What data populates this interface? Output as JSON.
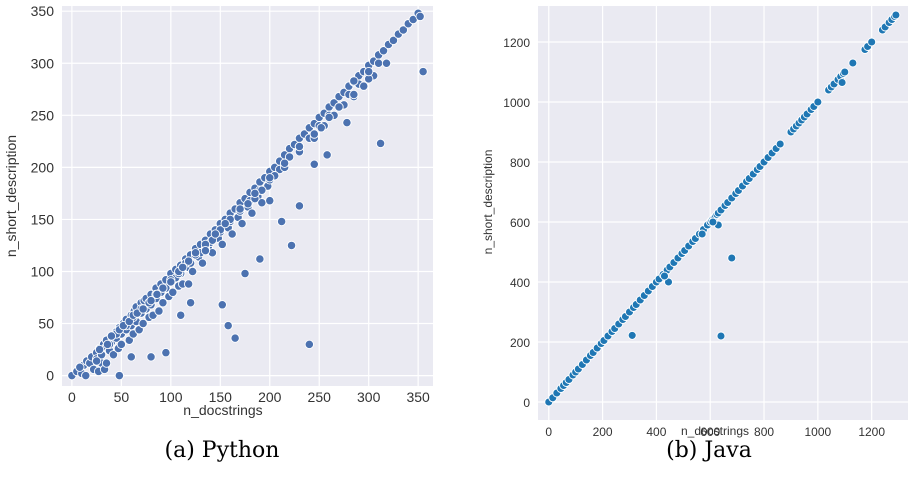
{
  "colors": {
    "panel_bg": "#eaeaf2",
    "grid": "#ffffff",
    "python_marker": "#4c72b0",
    "java_marker": "#1f77b4",
    "marker_edge": "#ffffff"
  },
  "chart_data": [
    {
      "type": "scatter",
      "caption": "(a) Python",
      "xlabel": "n_docstrings",
      "ylabel": "n_short_description",
      "xlim": [
        -10,
        365
      ],
      "ylim": [
        -10,
        355
      ],
      "xticks": [
        0,
        50,
        100,
        150,
        200,
        250,
        300,
        350
      ],
      "yticks": [
        0,
        50,
        100,
        150,
        200,
        250,
        300,
        350
      ],
      "grid": true,
      "series": [
        {
          "x": [
            0,
            5,
            8,
            10,
            12,
            14,
            15,
            18,
            20,
            22,
            25,
            25,
            27,
            28,
            30,
            30,
            32,
            33,
            35,
            35,
            38,
            40,
            40,
            42,
            45,
            45,
            47,
            48,
            50,
            50,
            52,
            55,
            55,
            58,
            60,
            60,
            62,
            63,
            65,
            65,
            68,
            70,
            70,
            72,
            73,
            75,
            75,
            78,
            80,
            80,
            82,
            85,
            85,
            88,
            90,
            90,
            92,
            95,
            95,
            98,
            100,
            100,
            102,
            105,
            105,
            108,
            110,
            110,
            112,
            115,
            118,
            120,
            120,
            122,
            125,
            128,
            130,
            130,
            132,
            135,
            138,
            140,
            140,
            142,
            145,
            148,
            150,
            150,
            152,
            155,
            158,
            160,
            160,
            162,
            165,
            168,
            170,
            170,
            172,
            175,
            178,
            180,
            180,
            182,
            185,
            188,
            190,
            190,
            192,
            195,
            198,
            200,
            200,
            205,
            210,
            210,
            215,
            220,
            220,
            225,
            230,
            230,
            235,
            240,
            240,
            245,
            250,
            250,
            255,
            260,
            260,
            265,
            270,
            270,
            275,
            280,
            280,
            285,
            290,
            290,
            295,
            300,
            300,
            305,
            310,
            310,
            315,
            320,
            325,
            330,
            335,
            340,
            345,
            350,
            352,
            38,
            30,
            45,
            28,
            55,
            36,
            62,
            40,
            70,
            48,
            78,
            52,
            85,
            58,
            92,
            62,
            100,
            66,
            108,
            72,
            115,
            80,
            125,
            86,
            135,
            92,
            142,
            100,
            150,
            108,
            160,
            112,
            170,
            118,
            178,
            125,
            185,
            135,
            192,
            145,
            205,
            155,
            215,
            170,
            230,
            185,
            245,
            200,
            255,
            215,
            265,
            230,
            275,
            245,
            285,
            260,
            295,
            270,
            305,
            285,
            318,
            300,
            48,
            60,
            80,
            95,
            110,
            120,
            152,
            158,
            165,
            175,
            190,
            200,
            212,
            222,
            230,
            245,
            252,
            258,
            278,
            285,
            300,
            312,
            355,
            240,
            25,
            35,
            8,
            118,
            135
          ],
          "y": [
            0,
            4,
            8,
            2,
            10,
            0,
            14,
            12,
            18,
            6,
            22,
            16,
            4,
            26,
            20,
            12,
            30,
            6,
            34,
            28,
            24,
            38,
            32,
            20,
            42,
            36,
            26,
            46,
            40,
            30,
            50,
            54,
            44,
            34,
            58,
            48,
            40,
            62,
            66,
            52,
            44,
            70,
            60,
            50,
            72,
            74,
            64,
            56,
            78,
            68,
            58,
            84,
            74,
            62,
            88,
            80,
            70,
            92,
            84,
            76,
            98,
            90,
            80,
            102,
            94,
            86,
            106,
            98,
            88,
            112,
            104,
            116,
            108,
            100,
            122,
            114,
            126,
            118,
            108,
            130,
            122,
            136,
            128,
            118,
            140,
            132,
            146,
            138,
            126,
            150,
            142,
            156,
            148,
            136,
            160,
            152,
            166,
            158,
            146,
            170,
            162,
            176,
            168,
            156,
            180,
            172,
            186,
            178,
            166,
            190,
            182,
            196,
            188,
            200,
            206,
            198,
            212,
            218,
            210,
            222,
            228,
            220,
            232,
            238,
            228,
            242,
            248,
            240,
            252,
            258,
            250,
            262,
            268,
            258,
            272,
            278,
            270,
            282,
            288,
            280,
            292,
            298,
            290,
            302,
            308,
            300,
            312,
            318,
            322,
            328,
            332,
            338,
            342,
            348,
            345,
            30,
            20,
            40,
            25,
            48,
            30,
            56,
            38,
            64,
            44,
            70,
            48,
            78,
            52,
            84,
            58,
            92,
            60,
            98,
            64,
            108,
            72,
            116,
            78,
            122,
            84,
            130,
            90,
            140,
            100,
            150,
            104,
            158,
            110,
            165,
            118,
            170,
            126,
            178,
            136,
            192,
            146,
            200,
            160,
            215,
            175,
            228,
            190,
            240,
            204,
            250,
            220,
            260,
            232,
            268,
            248,
            278,
            258,
            288,
            270,
            300,
            285,
            0,
            18,
            18,
            22,
            58,
            70,
            68,
            48,
            36,
            98,
            112,
            168,
            148,
            125,
            163,
            203,
            238,
            212,
            243,
            283,
            292,
            223,
            292,
            30,
            14,
            12,
            8,
            88,
            120
          ]
        }
      ]
    },
    {
      "type": "scatter",
      "caption": "(b) Java",
      "xlabel": "n_docstrings",
      "ylabel": "n_short_description",
      "xlim": [
        -40,
        1335
      ],
      "ylim": [
        -60,
        1320
      ],
      "xticks": [
        0,
        200,
        400,
        600,
        800,
        1000,
        1200
      ],
      "yticks": [
        0,
        200,
        400,
        600,
        800,
        1000,
        1200
      ],
      "grid": true,
      "series": [
        {
          "x": [
            0,
            15,
            30,
            45,
            55,
            65,
            75,
            90,
            100,
            110,
            125,
            140,
            155,
            165,
            180,
            195,
            205,
            220,
            235,
            245,
            260,
            275,
            285,
            300,
            315,
            325,
            340,
            355,
            370,
            385,
            400,
            410,
            425,
            440,
            450,
            465,
            480,
            495,
            505,
            520,
            535,
            545,
            560,
            575,
            590,
            600,
            605,
            610,
            615,
            620,
            625,
            630,
            640,
            655,
            665,
            680,
            695,
            705,
            720,
            735,
            745,
            760,
            775,
            785,
            800,
            815,
            830,
            845,
            860,
            900,
            910,
            920,
            930,
            940,
            950,
            960,
            975,
            985,
            1000,
            1040,
            1050,
            1060,
            1075,
            1085,
            1095,
            1100,
            1130,
            1175,
            1185,
            1200,
            1240,
            1250,
            1265,
            1275,
            1285,
            1290,
            310,
            640,
            680,
            445,
            570,
            630,
            1090,
            430,
            610
          ],
          "y": [
            0,
            14,
            30,
            45,
            55,
            65,
            75,
            90,
            100,
            110,
            125,
            140,
            155,
            165,
            180,
            195,
            205,
            220,
            235,
            245,
            260,
            275,
            285,
            300,
            315,
            325,
            340,
            355,
            370,
            385,
            400,
            410,
            425,
            440,
            450,
            465,
            480,
            495,
            505,
            520,
            535,
            545,
            560,
            575,
            590,
            600,
            605,
            610,
            615,
            620,
            625,
            630,
            640,
            655,
            665,
            680,
            695,
            705,
            720,
            735,
            745,
            760,
            775,
            785,
            800,
            815,
            830,
            845,
            860,
            900,
            910,
            920,
            930,
            940,
            950,
            960,
            975,
            985,
            1000,
            1040,
            1050,
            1060,
            1075,
            1085,
            1095,
            1100,
            1130,
            1175,
            1185,
            1200,
            1240,
            1250,
            1265,
            1275,
            1285,
            1290,
            222,
            220,
            480,
            400,
            560,
            590,
            1065,
            420,
            600
          ]
        }
      ]
    }
  ]
}
